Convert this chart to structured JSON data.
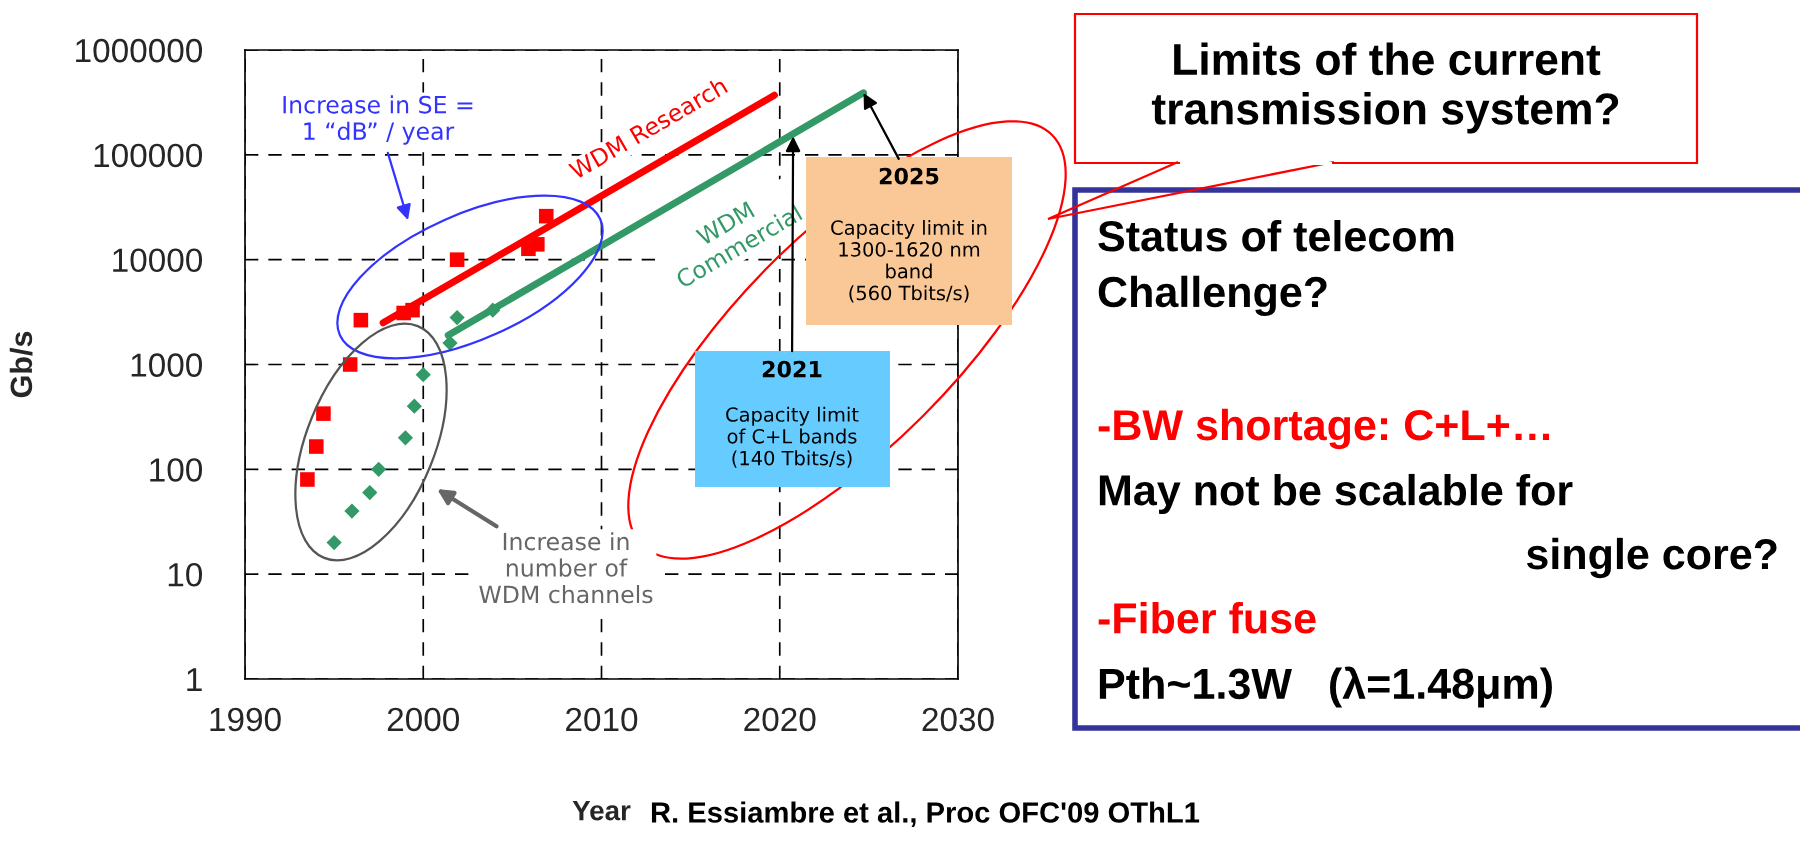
{
  "chart_data": {
    "type": "scatter",
    "xlabel": "Year",
    "ylabel": "Gb/s",
    "log": "y",
    "xlim": [
      1990,
      2030
    ],
    "ylim": [
      1,
      1000000
    ],
    "xticks": [
      1990,
      2000,
      2010,
      2020,
      2030
    ],
    "yticks": [
      1,
      10,
      100,
      1000,
      10000,
      100000,
      1000000
    ],
    "grid": true,
    "series": [
      {
        "marker": "square",
        "color": "#ff0000",
        "x": [
          1993.5,
          1994.0,
          1994.4,
          1995.9,
          1996.5,
          1998.9,
          1999.4,
          2001.9,
          2005.9,
          2006.4,
          2006.9
        ],
        "values": [
          80,
          165,
          340,
          1000,
          2650,
          3100,
          3300,
          10000,
          12700,
          14000,
          26000
        ]
      },
      {
        "marker": "diamond",
        "color": "#339966",
        "x": [
          1995.0,
          1996.0,
          1997.0,
          1997.5,
          1999.0,
          1999.5,
          2000.0,
          2001.5,
          2001.9,
          2003.9
        ],
        "values": [
          20,
          40,
          60,
          100,
          200,
          400,
          800,
          1600,
          2800,
          3300
        ]
      },
      {
        "type": "line",
        "name": "WDM Research",
        "color": "#ff0000",
        "x": [
          1997.75,
          2019.7
        ],
        "values": [
          2500,
          370000
        ]
      },
      {
        "type": "line",
        "name": "WDM\nCommercial",
        "color": "#339966",
        "x": [
          2001.4,
          2024.7
        ],
        "values": [
          1900,
          390000
        ]
      }
    ],
    "annotations": [
      "Increase in SE =\n1 “dB” / year",
      "Increase in\nnumber of\nWDM channels",
      {
        "text": "2025",
        "x": 2024.7,
        "y": 390000
      },
      "Capacity limit in\n1300-1620 nm\nband\n(560 Tbits/s)",
      {
        "text": "2021",
        "x": 2020.75,
        "y": 150000
      },
      "Capacity limit\nof C+L bands\n(140 Tbits/s)",
      "Limits of the current\ntransmission system?",
      "Status of telecom\nChallenge?",
      "-BW shortage: C+L+…",
      "May not be scalable for",
      "single core?",
      "-Fiber fuse",
      "Pth~1.3W   (λ=1.48μm)",
      "R. Essiambre et al., Proc OFC'09 OThL1"
    ]
  }
}
